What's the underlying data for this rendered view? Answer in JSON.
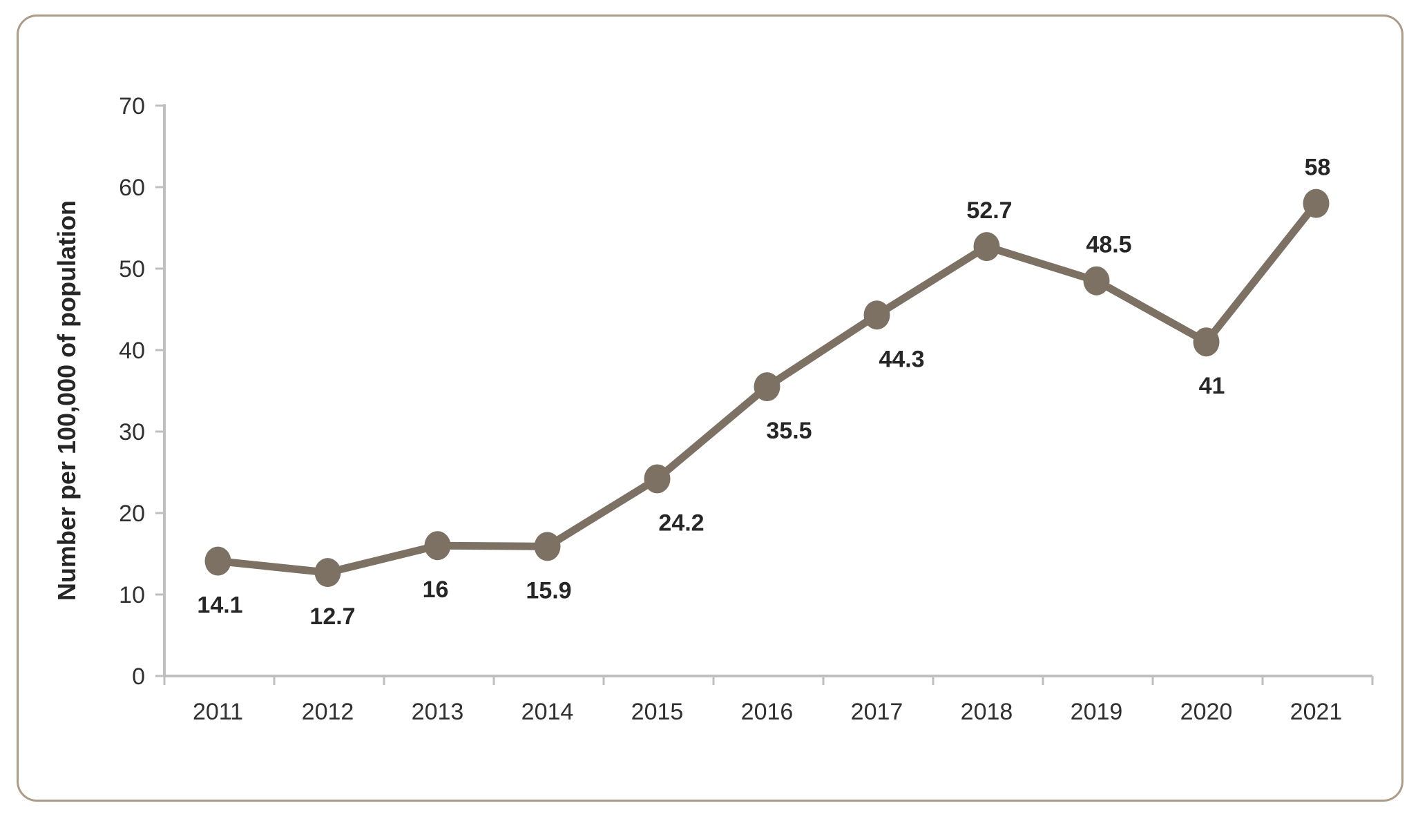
{
  "chart_data": {
    "type": "line",
    "title": "",
    "xlabel": "",
    "ylabel": "Number per 100,000 of population",
    "categories": [
      "2011",
      "2012",
      "2013",
      "2014",
      "2015",
      "2016",
      "2017",
      "2018",
      "2019",
      "2020",
      "2021"
    ],
    "series": [
      {
        "name": "Number per 100,000 of population",
        "values": [
          14.1,
          12.7,
          16,
          15.9,
          24.2,
          35.5,
          44.3,
          52.7,
          48.5,
          41,
          58
        ]
      }
    ],
    "point_labels": [
      "14.1",
      "12.7",
      "16",
      "15.9",
      "24.2",
      "35.5",
      "44.3",
      "52.7",
      "48.5",
      "41",
      "58"
    ],
    "label_positions": [
      "below",
      "below",
      "below",
      "below",
      "below",
      "below",
      "below",
      "above",
      "above",
      "below",
      "above"
    ],
    "label_dx": [
      3,
      7,
      -3,
      2,
      35,
      32,
      36,
      4,
      18,
      8,
      2
    ],
    "y_ticks": [
      0,
      10,
      20,
      30,
      40,
      50,
      60,
      70
    ],
    "ylim": [
      0,
      70
    ],
    "grid": "off",
    "legend": "none",
    "colors": {
      "line": "#7d7164",
      "marker": "#7d7164",
      "value_label": "#262626",
      "tick_label": "#303030",
      "axis": "#bfbfbf",
      "card_border": "#ac9b87",
      "background": "#ffffff"
    }
  }
}
